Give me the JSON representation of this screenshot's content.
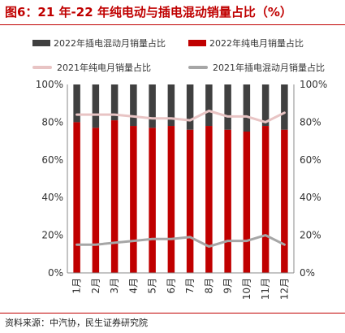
{
  "title": "图6：21 年-22 年纯电动与插电混动销量占比（%）",
  "source": "资料来源：中汽协，民生证券研究院",
  "colors": {
    "phev_2022": "#404040",
    "bev_2022": "#c00000",
    "bev_2021": "#e8c4c4",
    "phev_2021": "#a6a6a6",
    "title": "#c00000"
  },
  "chart_data": {
    "type": "bar",
    "stacked": true,
    "categories": [
      "1月",
      "2月",
      "3月",
      "4月",
      "5月",
      "6月",
      "7月",
      "8月",
      "9月",
      "10月",
      "11月",
      "12月"
    ],
    "ylim": [
      0,
      100
    ],
    "y_ticks": [
      "0%",
      "20%",
      "40%",
      "60%",
      "80%",
      "100%"
    ],
    "y2_ticks": [
      "0%",
      "20%",
      "40%",
      "60%",
      "80%",
      "100%"
    ],
    "grid": false,
    "legend_position": "top",
    "series": [
      {
        "name": "2022年插电混动月销量占比",
        "kind": "bar",
        "values": [
          20,
          23,
          19,
          22,
          23,
          22,
          24,
          22,
          24,
          25,
          22,
          24
        ]
      },
      {
        "name": "2022年纯电月销量占比",
        "kind": "bar",
        "values": [
          80,
          77,
          81,
          78,
          77,
          78,
          76,
          78,
          76,
          75,
          78,
          76
        ]
      },
      {
        "name": "2021年纯电月销量占比",
        "kind": "line",
        "values": [
          84,
          84,
          84,
          83,
          82,
          82,
          81,
          86,
          83,
          83,
          80,
          85
        ]
      },
      {
        "name": "2021年插电混动月销量占比",
        "kind": "line",
        "values": [
          15,
          15,
          16,
          17,
          18,
          18,
          19,
          14,
          17,
          17,
          20,
          15
        ]
      }
    ]
  }
}
